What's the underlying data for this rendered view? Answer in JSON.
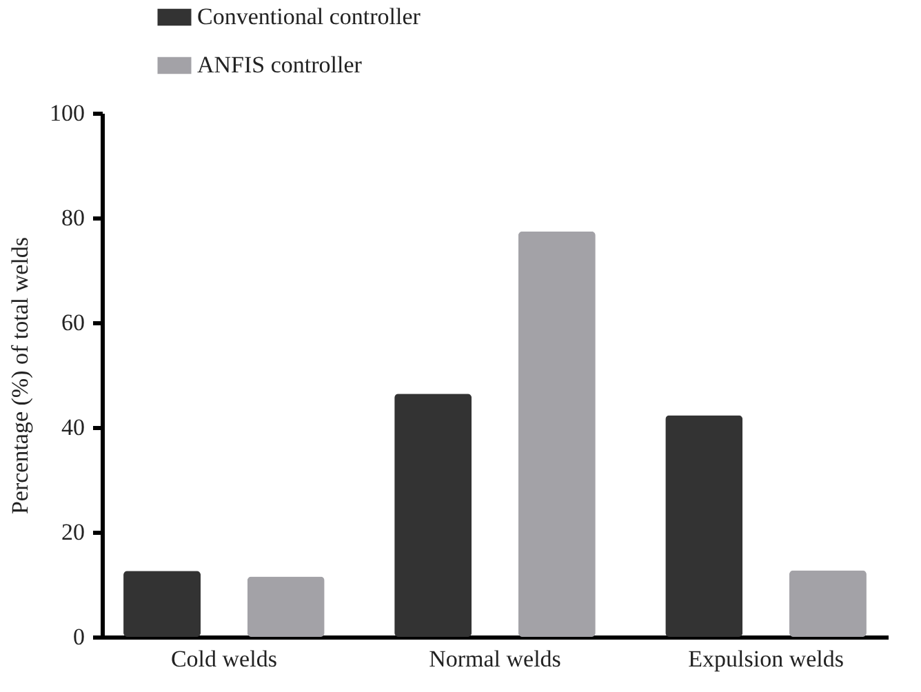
{
  "chart_data": {
    "type": "bar",
    "ylabel": "Percentage (%) of total welds",
    "categories": [
      "Cold welds",
      "Normal welds",
      "Expulsion welds"
    ],
    "series": [
      {
        "name": "Conventional controller",
        "color": "#333333",
        "values": [
          12.6,
          46.4,
          42.3
        ]
      },
      {
        "name": "ANFIS controller",
        "color": "#a3a2a7",
        "values": [
          11.5,
          77.4,
          12.7
        ]
      }
    ],
    "ylim": [
      0,
      100
    ],
    "yticks": [
      0,
      20,
      40,
      60,
      80,
      100
    ],
    "grid": false,
    "legend": "top"
  }
}
